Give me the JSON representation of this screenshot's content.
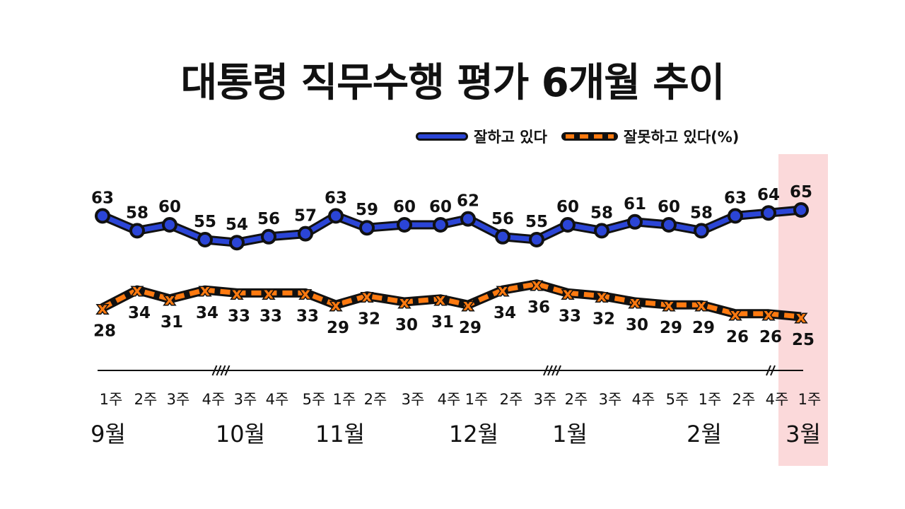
{
  "title": "대통령 직무수행 평가 6개월 추이",
  "chart_data": {
    "type": "line",
    "title": "대통령 직무수행 평가 6개월 추이",
    "unit": "(%)",
    "legend_position": "top-right",
    "grid": false,
    "x_weeks": [
      "1주",
      "2주",
      "3주",
      "4주",
      "3주",
      "4주",
      "5주",
      "1주",
      "2주",
      "3주",
      "4주",
      "1주",
      "2주",
      "3주",
      "2주",
      "3주",
      "4주",
      "5주",
      "1주",
      "2주",
      "4주",
      "1주"
    ],
    "months": [
      {
        "label": "9월",
        "start_index": 0
      },
      {
        "label": "10월",
        "start_index": 4
      },
      {
        "label": "11월",
        "start_index": 7
      },
      {
        "label": "12월",
        "start_index": 11
      },
      {
        "label": "1월",
        "start_index": 14
      },
      {
        "label": "2월",
        "start_index": 18
      },
      {
        "label": "3월",
        "start_index": 21
      }
    ],
    "axis_breaks_after_index": [
      3,
      13,
      20
    ],
    "highlighted_index": 21,
    "series": [
      {
        "name": "잘하고 있다",
        "color": "#2b45d6",
        "values": [
          63,
          58,
          60,
          55,
          54,
          56,
          57,
          63,
          59,
          60,
          60,
          62,
          56,
          55,
          60,
          58,
          61,
          60,
          58,
          63,
          64,
          65
        ]
      },
      {
        "name": "잘못하고 있다",
        "color": "#ff7a10",
        "values": [
          28,
          34,
          31,
          34,
          33,
          33,
          33,
          29,
          32,
          30,
          31,
          29,
          34,
          36,
          33,
          32,
          30,
          29,
          29,
          26,
          26,
          25
        ]
      }
    ]
  },
  "legend": {
    "approve": "잘하고 있다",
    "disapprove": "잘못하고 있다(%)"
  }
}
